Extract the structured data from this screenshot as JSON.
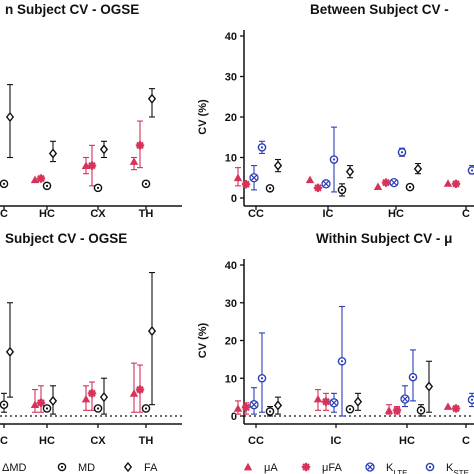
{
  "chart_data": [
    {
      "id": "tl",
      "type": "scatter",
      "title": "n Subject CV - OGSE",
      "ylabel": "",
      "ylim": [
        0,
        40
      ],
      "categories": [
        "C",
        "HC",
        "CX",
        "TH"
      ],
      "series": [
        {
          "marker": "triangle",
          "color": "#d6325a",
          "values": [
            null,
            4.5,
            8,
            9
          ]
        },
        {
          "marker": "star",
          "color": "#d6325a",
          "values": [
            null,
            4.8,
            8,
            13
          ]
        },
        {
          "marker": "circle-dot",
          "color": "#111111",
          "values": [
            3.5,
            3,
            2.5,
            3.5
          ]
        },
        {
          "marker": "diamond",
          "color": "#111111",
          "values": [
            20,
            11,
            12,
            24.5
          ]
        }
      ],
      "errors": [
        {
          "series": 0,
          "index": 2,
          "lo": 6,
          "hi": 10
        },
        {
          "series": 0,
          "index": 3,
          "lo": 7,
          "hi": 10
        },
        {
          "series": 1,
          "index": 2,
          "lo": 3,
          "hi": 13
        },
        {
          "series": 1,
          "index": 3,
          "lo": 7.5,
          "hi": 19
        },
        {
          "series": 3,
          "index": 0,
          "lo": 10,
          "hi": 28
        },
        {
          "series": 3,
          "index": 1,
          "lo": 9,
          "hi": 14
        },
        {
          "series": 3,
          "index": 2,
          "lo": 10,
          "hi": 14
        },
        {
          "series": 3,
          "index": 3,
          "lo": 20,
          "hi": 27
        }
      ]
    },
    {
      "id": "tr",
      "type": "scatter",
      "title": "Between Subject CV - ",
      "ylabel": "CV (%)",
      "ylim": [
        0,
        40
      ],
      "yticks": [
        0,
        10,
        20,
        30,
        40
      ],
      "categories": [
        "CC",
        "IC",
        "HC",
        "C"
      ],
      "series": [
        {
          "marker": "triangle",
          "color": "#d6325a",
          "values": [
            5,
            4.5,
            2.8,
            3.6
          ]
        },
        {
          "marker": "star",
          "color": "#d6325a",
          "values": [
            3.4,
            2.5,
            3.8,
            3.5
          ]
        },
        {
          "marker": "x-circle",
          "color": "#2b3fb5",
          "values": [
            5,
            3.5,
            3.8,
            null
          ]
        },
        {
          "marker": "circle-dot",
          "color": "#2b3fb5",
          "values": [
            12.5,
            9.5,
            11.3,
            6.8
          ]
        },
        {
          "marker": "circle-dot",
          "color": "#111111",
          "values": [
            2.4,
            2,
            2.7,
            null
          ]
        },
        {
          "marker": "diamond",
          "color": "#111111",
          "values": [
            8,
            6.5,
            7.2,
            null
          ]
        }
      ],
      "errors": [
        {
          "series": 0,
          "index": 0,
          "lo": 3,
          "hi": 7.5
        },
        {
          "series": 2,
          "index": 0,
          "lo": 2,
          "hi": 8
        },
        {
          "series": 3,
          "index": 0,
          "lo": 11,
          "hi": 14
        },
        {
          "series": 3,
          "index": 1,
          "lo": 1.5,
          "hi": 17.5
        },
        {
          "series": 3,
          "index": 2,
          "lo": 10.3,
          "hi": 12.3
        },
        {
          "series": 4,
          "index": 1,
          "lo": 0.5,
          "hi": 3.5
        },
        {
          "series": 5,
          "index": 0,
          "lo": 6.5,
          "hi": 9.5
        },
        {
          "series": 5,
          "index": 1,
          "lo": 5,
          "hi": 8
        },
        {
          "series": 5,
          "index": 2,
          "lo": 6,
          "hi": 8.5
        },
        {
          "series": 3,
          "index": 3,
          "lo": 6,
          "hi": 8
        }
      ]
    },
    {
      "id": "bl",
      "type": "scatter",
      "title": "Subject CV - OGSE",
      "ylabel": "",
      "ylim": [
        0,
        40
      ],
      "categories": [
        "C",
        "HC",
        "CX",
        "TH"
      ],
      "reference_line": 0,
      "series": [
        {
          "marker": "triangle",
          "color": "#d6325a",
          "values": [
            null,
            3,
            4.5,
            6
          ]
        },
        {
          "marker": "star",
          "color": "#d6325a",
          "values": [
            null,
            3.5,
            6,
            7
          ]
        },
        {
          "marker": "circle-dot",
          "color": "#111111",
          "values": [
            3,
            2,
            2,
            2
          ]
        },
        {
          "marker": "diamond",
          "color": "#111111",
          "values": [
            17,
            4,
            5,
            22.5
          ]
        }
      ],
      "errors": [
        {
          "series": 0,
          "index": 1,
          "lo": 1,
          "hi": 7
        },
        {
          "series": 0,
          "index": 2,
          "lo": 1.5,
          "hi": 8
        },
        {
          "series": 0,
          "index": 3,
          "lo": 1,
          "hi": 14
        },
        {
          "series": 1,
          "index": 1,
          "lo": 1,
          "hi": 8
        },
        {
          "series": 1,
          "index": 2,
          "lo": 1.5,
          "hi": 9
        },
        {
          "series": 1,
          "index": 3,
          "lo": 1,
          "hi": 13.5
        },
        {
          "series": 2,
          "index": 0,
          "lo": 1,
          "hi": 6
        },
        {
          "series": 3,
          "index": 0,
          "lo": 5,
          "hi": 30
        },
        {
          "series": 3,
          "index": 1,
          "lo": 0.5,
          "hi": 8
        },
        {
          "series": 3,
          "index": 2,
          "lo": 0.5,
          "hi": 10
        },
        {
          "series": 3,
          "index": 3,
          "lo": 3,
          "hi": 38
        }
      ]
    },
    {
      "id": "br",
      "type": "scatter",
      "title": "Within Subject CV - μ",
      "ylabel": "CV (%)",
      "ylim": [
        0,
        40
      ],
      "yticks": [
        0,
        10,
        20,
        30,
        40
      ],
      "categories": [
        "CC",
        "IC",
        "HC",
        "C"
      ],
      "reference_line": 0,
      "series": [
        {
          "marker": "triangle",
          "color": "#d6325a",
          "values": [
            2,
            4.5,
            1.5,
            2.5
          ]
        },
        {
          "marker": "star",
          "color": "#d6325a",
          "values": [
            2.3,
            3.8,
            1.5,
            2
          ]
        },
        {
          "marker": "x-circle",
          "color": "#2b3fb5",
          "values": [
            3,
            3.5,
            4.5,
            null
          ]
        },
        {
          "marker": "circle-dot",
          "color": "#2b3fb5",
          "values": [
            10,
            14.5,
            10.3,
            4.3
          ]
        },
        {
          "marker": "circle-dot",
          "color": "#111111",
          "values": [
            1.2,
            1.8,
            1.5,
            null
          ]
        },
        {
          "marker": "diamond",
          "color": "#111111",
          "values": [
            2.8,
            3.8,
            7.8,
            null
          ]
        }
      ],
      "errors": [
        {
          "series": 0,
          "index": 0,
          "lo": 0.5,
          "hi": 4
        },
        {
          "series": 0,
          "index": 1,
          "lo": 1.5,
          "hi": 7
        },
        {
          "series": 0,
          "index": 2,
          "lo": 0.5,
          "hi": 3
        },
        {
          "series": 1,
          "index": 0,
          "lo": 0.5,
          "hi": 3.5
        },
        {
          "series": 1,
          "index": 1,
          "lo": 1.5,
          "hi": 6
        },
        {
          "series": 1,
          "index": 2,
          "lo": 0.5,
          "hi": 2.5
        },
        {
          "series": 2,
          "index": 0,
          "lo": 0.5,
          "hi": 7.5
        },
        {
          "series": 2,
          "index": 1,
          "lo": 1,
          "hi": 6
        },
        {
          "series": 2,
          "index": 2,
          "lo": 2.5,
          "hi": 8
        },
        {
          "series": 3,
          "index": 0,
          "lo": 1,
          "hi": 22
        },
        {
          "series": 3,
          "index": 1,
          "lo": 0,
          "hi": 29
        },
        {
          "series": 3,
          "index": 2,
          "lo": 4,
          "hi": 17.5
        },
        {
          "series": 3,
          "index": 3,
          "lo": 2.5,
          "hi": 6
        },
        {
          "series": 4,
          "index": 0,
          "lo": 0,
          "hi": 2.5
        },
        {
          "series": 4,
          "index": 2,
          "lo": 0,
          "hi": 3
        },
        {
          "series": 5,
          "index": 0,
          "lo": 0.5,
          "hi": 5
        },
        {
          "series": 5,
          "index": 1,
          "lo": 1.5,
          "hi": 6
        },
        {
          "series": 5,
          "index": 2,
          "lo": 1,
          "hi": 14.5
        }
      ]
    }
  ],
  "legend_left": [
    {
      "marker": "triangle",
      "color": "#d6325a",
      "label": "ΔMD"
    },
    {
      "marker": "circle-dot",
      "color": "#111111",
      "label": "MD"
    },
    {
      "marker": "diamond",
      "color": "#111111",
      "label": "FA"
    }
  ],
  "legend_right": [
    {
      "marker": "triangle",
      "color": "#d6325a",
      "label": "μA"
    },
    {
      "marker": "star",
      "color": "#d6325a",
      "label": "μFA"
    },
    {
      "marker": "x-circle",
      "color": "#2b3fb5",
      "label": "K",
      "sub": "LTE"
    },
    {
      "marker": "circle-dot",
      "color": "#2b3fb5",
      "label": "K",
      "sub": "STE"
    }
  ]
}
